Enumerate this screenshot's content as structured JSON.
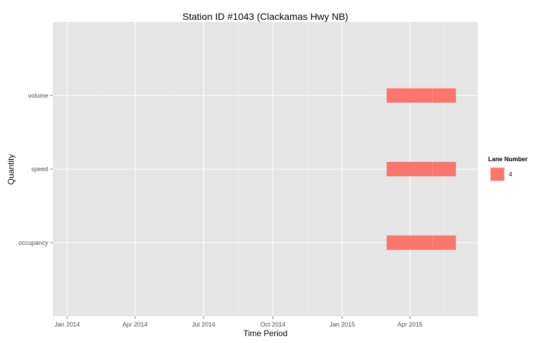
{
  "chart_data": {
    "type": "bar",
    "subtype": "timeline",
    "title": "Station ID #1043 (Clackamas Hwy NB)",
    "xlabel": "Time Period",
    "ylabel": "Quantity",
    "x_ticks": [
      "Jan 2014",
      "Apr 2014",
      "Jul 2014",
      "Oct 2014",
      "Jan 2015",
      "Apr 2015"
    ],
    "x_tick_dates": [
      "2014-01-01",
      "2014-04-01",
      "2014-07-01",
      "2014-10-01",
      "2015-01-01",
      "2015-04-01"
    ],
    "xlim": [
      "2013-12-13",
      "2015-06-30"
    ],
    "categories": [
      "occupancy",
      "speed",
      "volume"
    ],
    "series": [
      {
        "name": "4",
        "color": "#F8766D",
        "segments": [
          {
            "category": "volume",
            "start": "2015-03-01",
            "end": "2015-06-01"
          },
          {
            "category": "speed",
            "start": "2015-03-01",
            "end": "2015-06-01"
          },
          {
            "category": "occupancy",
            "start": "2015-03-01",
            "end": "2015-06-01"
          }
        ]
      }
    ],
    "segment_dividers": [
      "2015-05-01"
    ],
    "legend": {
      "title": "Lane Number",
      "position": "right"
    },
    "grid": true,
    "background": "#E5E5E5"
  }
}
